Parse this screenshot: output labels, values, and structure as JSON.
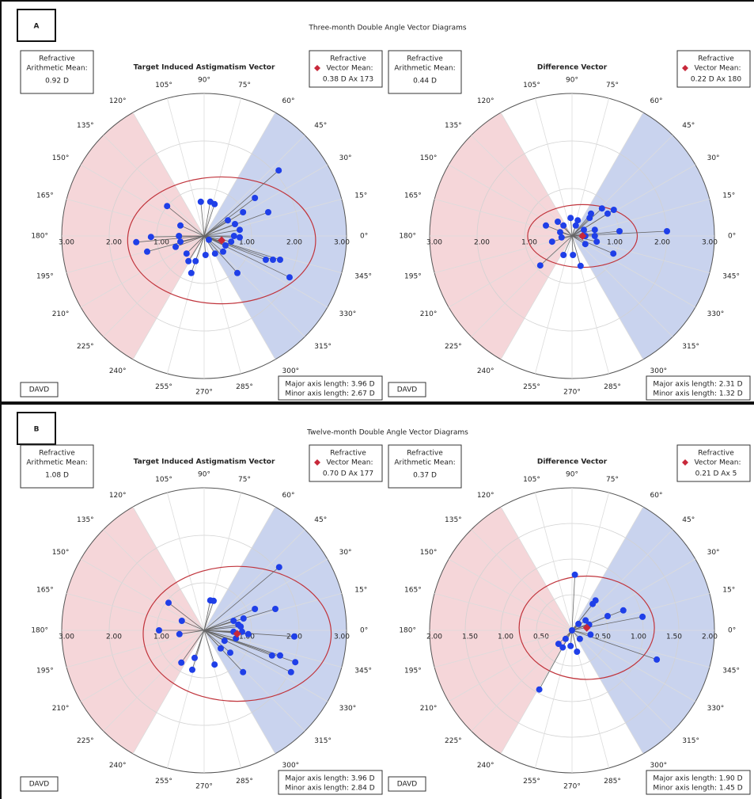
{
  "panels": [
    {
      "letter": "A",
      "title": "Three-month Double Angle Vector Diagrams"
    },
    {
      "letter": "B",
      "title": "Twelve-month Double Angle Vector Diagrams"
    }
  ],
  "angle_ticks": [
    {
      "value": 0,
      "label": "0°"
    },
    {
      "value": 15,
      "label": "15°"
    },
    {
      "value": 30,
      "label": "30°"
    },
    {
      "value": 45,
      "label": "45°"
    },
    {
      "value": 60,
      "label": "60°"
    },
    {
      "value": 75,
      "label": "75°"
    },
    {
      "value": 90,
      "label": "90°"
    },
    {
      "value": 105,
      "label": "105°"
    },
    {
      "value": 120,
      "label": "120°"
    },
    {
      "value": 135,
      "label": "135°"
    },
    {
      "value": 150,
      "label": "150°"
    },
    {
      "value": 165,
      "label": "165°"
    },
    {
      "value": 180,
      "label": "180°"
    },
    {
      "value": 195,
      "label": "195°"
    },
    {
      "value": 210,
      "label": "210°"
    },
    {
      "value": 225,
      "label": "225°"
    },
    {
      "value": 240,
      "label": "240°"
    },
    {
      "value": 255,
      "label": "255°"
    },
    {
      "value": 270,
      "label": "270°"
    },
    {
      "value": 285,
      "label": "285°"
    },
    {
      "value": 300,
      "label": "300°"
    },
    {
      "value": 315,
      "label": "315°"
    },
    {
      "value": 330,
      "label": "330°"
    },
    {
      "value": 345,
      "label": "345°"
    }
  ],
  "sectors": [
    {
      "from": 120,
      "to": 240,
      "color": "#f5d6d9"
    },
    {
      "from": -60,
      "to": 60,
      "color": "#c9d3ee"
    }
  ],
  "chart_data": [
    {
      "type": "polar_scatter",
      "title": "Target Induced Astigmatism Vector",
      "color": "#1f3fe8",
      "mean_color": "#c8283a",
      "mean_box_label": [
        "Refractive",
        "Arithmetic Mean:"
      ],
      "arithmetic_mean": "0.92 D",
      "vector_box_label": [
        "Refractive",
        "Vector Mean:"
      ],
      "vector_mean": {
        "magnitude": 0.38,
        "axis": 173,
        "label": "0.38 D Ax 173"
      },
      "ellipse": {
        "major": 3.96,
        "minor": 2.67,
        "labels": [
          "Major axis length: 3.96 D",
          "Minor axis length: 2.67 D"
        ]
      },
      "badge": "DAVD",
      "rlim": [
        0,
        3
      ],
      "rticks": [
        {
          "value": 1,
          "label": "1.00"
        },
        {
          "value": 2,
          "label": "2.00"
        },
        {
          "value": 3,
          "label": "3.00"
        }
      ],
      "x": [
        1.57,
        -0.78,
        -0.07,
        0.13,
        0.22,
        1.07,
        1.35,
        0.82,
        0.5,
        0.65,
        0.75,
        0.63,
        0.75,
        0.57,
        0.45,
        0.4,
        0.23,
        0.03,
        -0.18,
        -0.33,
        -0.27,
        0.7,
        1.3,
        1.45,
        1.6,
        1.8,
        -0.53,
        -0.5,
        -0.6,
        -1.2,
        -1.43,
        -1.12,
        -0.5,
        0.1,
        -0.37
      ],
      "values": [
        1.38,
        0.63,
        0.72,
        0.72,
        0.67,
        0.8,
        0.5,
        0.5,
        0.33,
        0.25,
        0.13,
        0,
        -0.03,
        -0.12,
        -0.2,
        -0.33,
        -0.37,
        -0.4,
        -0.53,
        -0.53,
        -0.78,
        -0.78,
        -0.5,
        -0.5,
        -0.5,
        -0.87,
        0,
        -0.12,
        -0.23,
        -0.33,
        -0.13,
        -0.02,
        0.22,
        -0.08,
        -0.37
      ]
    },
    {
      "type": "polar_scatter",
      "title": "Difference Vector",
      "color": "#1f3fe8",
      "mean_color": "#c8283a",
      "mean_box_label": [
        "Refractive",
        "Arithmetic Mean:"
      ],
      "arithmetic_mean": "0.44 D",
      "vector_box_label": [
        "Refractive",
        "Vector Mean:"
      ],
      "vector_mean": {
        "magnitude": 0.22,
        "axis": 180,
        "label": "0.22 D Ax 180"
      },
      "ellipse": {
        "major": 2.31,
        "minor": 1.32,
        "labels": [
          "Major axis length: 2.31 D",
          "Minor axis length: 1.32 D"
        ]
      },
      "badge": "DAVD",
      "rlim": [
        0,
        3
      ],
      "rticks": [
        {
          "value": 1,
          "label": "1.00"
        },
        {
          "value": 2,
          "label": "2.00"
        },
        {
          "value": 3,
          "label": "3.00"
        }
      ],
      "x": [
        2.0,
        1.0,
        0.88,
        0.75,
        0.63,
        0.4,
        0.37,
        0.12,
        -0.03,
        -0.18,
        -0.3,
        -0.55,
        -0.25,
        0.08,
        0.25,
        0.48,
        0.48,
        0.28,
        0.52,
        0.28,
        0.87,
        -0.18,
        0.02,
        0.18,
        -0.42,
        -0.67,
        -0.22
      ],
      "values": [
        0.1,
        0.1,
        0.55,
        0.47,
        0.58,
        0.47,
        0.38,
        0.33,
        0.38,
        0.22,
        0.3,
        0.22,
        0.08,
        0.22,
        0.13,
        0.13,
        0,
        0,
        -0.12,
        -0.17,
        -0.37,
        -0.4,
        -0.4,
        -0.63,
        -0.12,
        -0.62,
        -0.03
      ]
    },
    {
      "type": "polar_scatter",
      "title": "Target Induced Astigmatism Vector",
      "color": "#1f3fe8",
      "mean_color": "#c8283a",
      "mean_box_label": [
        "Refractive",
        "Arithmetic Mean:"
      ],
      "arithmetic_mean": "1.08 D",
      "vector_box_label": [
        "Refractive",
        "Vector Mean:"
      ],
      "vector_mean": {
        "magnitude": 0.7,
        "axis": 177,
        "label": "0.70 D Ax 177"
      },
      "ellipse": {
        "major": 3.96,
        "minor": 2.84,
        "labels": [
          "Major axis length: 3.96 D",
          "Minor axis length: 2.84 D"
        ]
      },
      "badge": "DAVD",
      "rlim": [
        0,
        3
      ],
      "rticks": [
        {
          "value": 1,
          "label": "1.00"
        },
        {
          "value": 2,
          "label": "2.00"
        },
        {
          "value": 3,
          "label": "3.00"
        }
      ],
      "x": [
        1.58,
        0.13,
        0.2,
        1.07,
        1.5,
        0.83,
        0.62,
        0.72,
        0.77,
        0.62,
        0.8,
        0.93,
        1.9,
        0.67,
        0.43,
        0.35,
        0.55,
        1.43,
        1.6,
        1.92,
        1.83,
        0.82,
        0.22,
        -0.2,
        -0.48,
        -0.25,
        -0.95,
        -0.47,
        -0.75,
        -0.52
      ],
      "values": [
        1.33,
        0.63,
        0.62,
        0.45,
        0.45,
        0.25,
        0.2,
        0.12,
        0.08,
        -0.03,
        -0.03,
        -0.08,
        -0.13,
        -0.17,
        -0.22,
        -0.38,
        -0.47,
        -0.53,
        -0.53,
        -0.67,
        -0.88,
        -0.88,
        -0.72,
        -0.58,
        -0.68,
        -0.83,
        0,
        0.2,
        0.58,
        -0.08
      ]
    },
    {
      "type": "polar_scatter",
      "title": "Difference Vector",
      "color": "#1f3fe8",
      "mean_color": "#c8283a",
      "mean_box_label": [
        "Refractive",
        "Arithmetic Mean:"
      ],
      "arithmetic_mean": "0.37 D",
      "vector_box_label": [
        "Refractive",
        "Vector Mean:"
      ],
      "vector_mean": {
        "magnitude": 0.21,
        "axis": 5,
        "label": "0.21 D Ax 5"
      },
      "ellipse": {
        "major": 1.9,
        "minor": 1.45,
        "labels": [
          "Major axis length: 1.90 D",
          "Minor axis length: 1.45 D"
        ]
      },
      "badge": "DAVD",
      "rlim": [
        0,
        2
      ],
      "rticks": [
        {
          "value": 0.5,
          "label": "0.50"
        },
        {
          "value": 1,
          "label": "1.00"
        },
        {
          "value": 1.5,
          "label": "1.50"
        },
        {
          "value": 2,
          "label": "2.00"
        }
      ],
      "x": [
        0.04,
        0.33,
        0.29,
        0.72,
        0.5,
        0.99,
        0.19,
        0.24,
        0.09,
        0,
        0.26,
        0.11,
        1.19,
        -0.02,
        -0.09,
        -0.19,
        -0.13,
        0.07,
        -0.46
      ],
      "values": [
        0.78,
        0.42,
        0.37,
        0.28,
        0.2,
        0.19,
        0.14,
        0.08,
        0.09,
        0,
        -0.06,
        -0.12,
        -0.41,
        -0.22,
        -0.12,
        -0.19,
        -0.24,
        -0.3,
        -0.83
      ]
    }
  ]
}
